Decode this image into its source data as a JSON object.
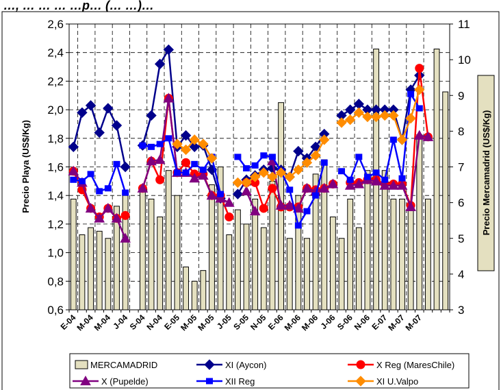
{
  "title": "…, … … … …p… (… …)…",
  "chart_data": {
    "type": "bar+line",
    "left_axis": {
      "label": "Precio Playa (US$/Kg)",
      "min": 0.6,
      "max": 2.6,
      "step": 0.2,
      "ticks": [
        "0,6",
        "0,8",
        "1,0",
        "1,2",
        "1,4",
        "1,6",
        "1,8",
        "2,0",
        "2,2",
        "2,4",
        "2,6"
      ]
    },
    "right_axis": {
      "label": "Precio Mercamadrid (US$/Kg)",
      "min": 3,
      "max": 11,
      "step": 1,
      "ticks": [
        "3",
        "4",
        "5",
        "6",
        "7",
        "8",
        "9",
        "10",
        "11"
      ]
    },
    "x_tick_labels": [
      "E-04",
      "M-04",
      "M-04",
      "J-04",
      "S-04",
      "N-04",
      "E-05",
      "M-05",
      "M-05",
      "J-05",
      "S-05",
      "N-05",
      "E-06",
      "M-06",
      "M-06",
      "J-06",
      "S-06",
      "N-06",
      "E-07",
      "M-07",
      "M-07"
    ],
    "n_slots": 44,
    "grid": "dashed vertical and horizontal",
    "legend_position": "bottom",
    "bars": {
      "name": "MERCAMADRID",
      "color": "#e4e0c0",
      "values": [
        6.1,
        5.1,
        5.3,
        5.2,
        5.0,
        5.9,
        6.2,
        null,
        6.3,
        6.1,
        5.6,
        6.9,
        6.2,
        4.2,
        3.8,
        4.1,
        6.5,
        7.0,
        5.1,
        5.8,
        5.4,
        6.1,
        5.3,
        6.6,
        8.8,
        5.0,
        6.2,
        5.0,
        6.8,
        7.2,
        5.6,
        5.0,
        6.1,
        5.3,
        6.9,
        10.3,
        6.9,
        6.1,
        6.1,
        5.9,
        7.9,
        6.1,
        10.3,
        9.1
      ]
    },
    "series": [
      {
        "name": "XI (Aycon)",
        "color": "#00008b",
        "marker": "diamond",
        "values": [
          1.74,
          1.98,
          2.03,
          1.84,
          2.01,
          1.89,
          1.6,
          null,
          1.75,
          1.96,
          2.32,
          2.42,
          1.74,
          1.82,
          1.74,
          1.75,
          1.58,
          1.38,
          null,
          1.41,
          1.51,
          1.54,
          1.58,
          1.59,
          1.58,
          1.53,
          1.71,
          1.66,
          1.74,
          1.83,
          null,
          1.96,
          2.0,
          2.04,
          2.0,
          2.0,
          2.0,
          2.0,
          1.79,
          2.14,
          2.24
        ]
      },
      {
        "name": "X Reg (MaresChile)",
        "color": "#ff0000",
        "marker": "circle",
        "values": [
          1.57,
          1.44,
          1.31,
          1.25,
          1.31,
          1.24,
          1.26,
          null,
          1.45,
          1.64,
          1.51,
          2.08,
          1.56,
          1.63,
          1.55,
          1.55,
          1.4,
          1.4,
          1.25,
          null,
          1.49,
          1.49,
          1.31,
          1.45,
          1.32,
          1.32,
          1.32,
          1.45,
          1.44,
          1.45,
          1.48,
          null,
          1.49,
          1.49,
          1.51,
          1.51,
          1.48,
          1.48,
          1.48,
          1.33,
          2.29,
          1.81
        ]
      },
      {
        "name": "X  (Pupelde)",
        "color": "#800080",
        "marker": "triangle",
        "values": [
          1.57,
          1.49,
          1.31,
          1.24,
          1.31,
          1.24,
          1.1,
          null,
          1.45,
          1.64,
          1.65,
          2.08,
          1.56,
          1.56,
          1.52,
          1.54,
          1.4,
          1.38,
          1.35,
          null,
          1.43,
          1.29,
          null,
          1.64,
          1.33,
          1.33,
          1.31,
          1.45,
          1.43,
          1.45,
          1.48,
          null,
          1.47,
          1.48,
          1.51,
          1.5,
          1.47,
          1.47,
          1.47,
          1.32,
          1.82,
          1.81
        ]
      },
      {
        "name": "XII Reg",
        "color": "#0000ff",
        "marker": "square",
        "values": [
          1.51,
          1.5,
          1.55,
          1.43,
          1.45,
          1.62,
          1.42,
          null,
          1.75,
          1.74,
          1.76,
          1.8,
          1.56,
          1.56,
          1.62,
          1.58,
          1.67,
          1.41,
          null,
          1.67,
          1.59,
          1.61,
          1.68,
          1.67,
          1.57,
          1.44,
          1.19,
          1.29,
          1.4,
          1.63,
          null,
          1.57,
          1.51,
          1.67,
          1.53,
          1.56,
          1.51,
          1.79,
          1.52,
          2.11,
          2.01
        ]
      },
      {
        "name": "XI U.Valpo",
        "color": "#ff8c00",
        "marker": "diamond",
        "values": [
          null,
          null,
          null,
          null,
          null,
          null,
          null,
          null,
          null,
          null,
          null,
          null,
          1.76,
          1.72,
          1.79,
          1.76,
          1.66,
          null,
          null,
          1.49,
          1.49,
          1.53,
          1.56,
          1.53,
          1.56,
          1.53,
          1.58,
          1.63,
          1.68,
          1.79,
          null,
          1.91,
          1.93,
          1.98,
          1.95,
          1.95,
          1.96,
          1.96,
          1.79,
          1.94,
          2.14
        ]
      }
    ]
  }
}
